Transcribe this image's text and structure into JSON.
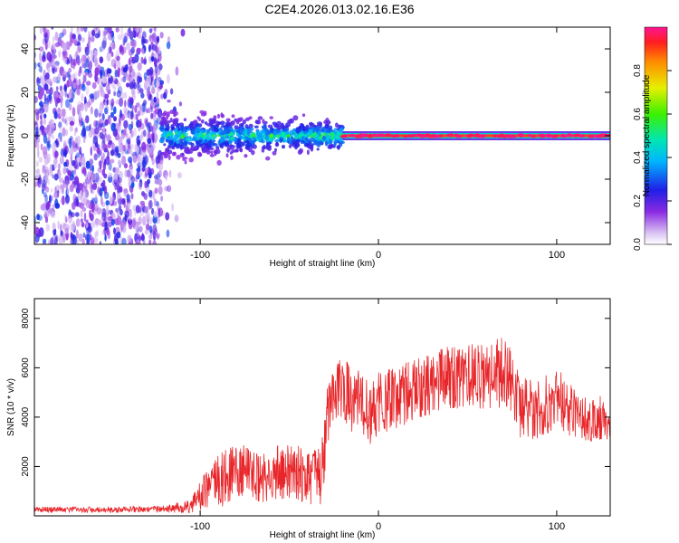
{
  "title": "C2E4.2026.013.02.16.E36",
  "chart_data": [
    {
      "type": "heatmap",
      "title": "C2E4.2026.013.02.16.E36",
      "xlabel": "Height of straight line (km)",
      "ylabel": "Frequency (Hz)",
      "xlim": [
        -193,
        130
      ],
      "ylim": [
        -50,
        50
      ],
      "xticks": [
        -100,
        0,
        100
      ],
      "yticks": [
        40,
        20,
        0,
        -20,
        -40
      ],
      "colorbar": {
        "label": "Normalized spectral amplitude",
        "range": [
          0,
          1
        ],
        "ticks": [
          "0.0",
          "0.2",
          "0.4",
          "0.6",
          "0.8"
        ],
        "tick_values": [
          0.0,
          0.2,
          0.4,
          0.6,
          0.8
        ]
      },
      "regions": [
        {
          "x_range": [
            -193,
            -122
          ],
          "description": "broadband noise",
          "amplitude": [
            0.05,
            0.3
          ]
        },
        {
          "x_range": [
            -122,
            -20
          ],
          "freq_center": 0,
          "freq_spread": [
            -10,
            10
          ],
          "amplitude": [
            0.2,
            0.5
          ]
        },
        {
          "x_range": [
            -20,
            130
          ],
          "freq_center": 0,
          "freq_spread": [
            -2,
            2
          ],
          "amplitude": [
            0.8,
            1.0
          ]
        }
      ]
    },
    {
      "type": "line",
      "xlabel": "Height of straight line (km)",
      "ylabel": "SNR (10 * v/v)",
      "xlim": [
        -193,
        130
      ],
      "ylim": [
        0,
        8800
      ],
      "xticks": [
        -100,
        0,
        100
      ],
      "yticks": [
        2000,
        4000,
        6000,
        8000
      ],
      "series": [
        {
          "name": "SNR",
          "color": "#e8262a",
          "x": [
            -193,
            -170,
            -150,
            -130,
            -115,
            -105,
            -95,
            -85,
            -75,
            -65,
            -55,
            -45,
            -38,
            -32,
            -28,
            -25,
            -20,
            -15,
            -10,
            -5,
            0,
            10,
            20,
            30,
            40,
            50,
            60,
            70,
            75,
            80,
            90,
            100,
            110,
            120,
            125,
            130
          ],
          "y_mean": [
            250,
            250,
            250,
            260,
            300,
            400,
            1200,
            1600,
            1800,
            1500,
            1800,
            1700,
            1600,
            1600,
            4600,
            5000,
            5200,
            4600,
            4800,
            4000,
            4600,
            4800,
            5000,
            5400,
            5600,
            5700,
            5500,
            5800,
            5500,
            4300,
            4300,
            4800,
            4200,
            3800,
            4000,
            3800
          ],
          "y_spread": [
            120,
            120,
            120,
            120,
            180,
            300,
            900,
            1200,
            1100,
            1000,
            1100,
            1200,
            1300,
            1300,
            1500,
            1400,
            1400,
            1300,
            1300,
            1200,
            1300,
            1300,
            1300,
            1300,
            1300,
            1300,
            1400,
            1500,
            1300,
            1300,
            1200,
            1200,
            1100,
            900,
            900,
            900
          ]
        }
      ]
    }
  ]
}
